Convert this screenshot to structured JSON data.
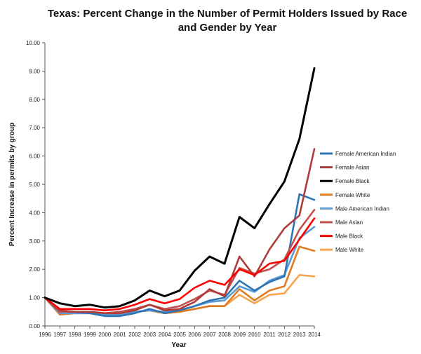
{
  "chart_data": {
    "type": "line",
    "title_line1": "Texas: Percent Change in the Number of Permit Holders Issued by Race",
    "title_line2": "and Gender by Year",
    "xlabel": "Year",
    "ylabel": "Percent Increase in permits by group",
    "ylim": [
      0,
      10
    ],
    "yticks": [
      "0.00",
      "1.00",
      "2.00",
      "3.00",
      "4.00",
      "5.00",
      "6.00",
      "7.00",
      "8.00",
      "9.00",
      "10.00"
    ],
    "grid": false,
    "legend_position": "right",
    "categories": [
      "1996",
      "1997",
      "1998",
      "1999",
      "2000",
      "2001",
      "2002",
      "2003",
      "2004",
      "2005",
      "2006",
      "2007",
      "2008",
      "2009",
      "2010",
      "2011",
      "2012",
      "2013",
      "2014"
    ],
    "series": [
      {
        "name": "Female American Indian",
        "color": "#2e75b6",
        "values": [
          1.0,
          0.5,
          0.5,
          0.45,
          0.35,
          0.35,
          0.45,
          0.6,
          0.45,
          0.55,
          0.7,
          0.9,
          1.0,
          1.6,
          1.25,
          1.55,
          1.75,
          4.65,
          4.45
        ]
      },
      {
        "name": "Female Asian",
        "color": "#b03b3b",
        "values": [
          1.0,
          0.55,
          0.5,
          0.5,
          0.45,
          0.45,
          0.55,
          0.75,
          0.55,
          0.6,
          0.85,
          1.3,
          1.05,
          2.45,
          1.75,
          2.7,
          3.45,
          3.9,
          6.25
        ]
      },
      {
        "name": "Female Black",
        "color": "#000000",
        "values": [
          1.0,
          0.8,
          0.7,
          0.75,
          0.65,
          0.7,
          0.9,
          1.25,
          1.05,
          1.25,
          1.95,
          2.45,
          2.2,
          3.85,
          3.45,
          4.3,
          5.1,
          6.6,
          9.1
        ]
      },
      {
        "name": "Female White",
        "color": "#e07b22",
        "values": [
          1.0,
          0.4,
          0.45,
          0.45,
          0.4,
          0.45,
          0.5,
          0.55,
          0.45,
          0.5,
          0.6,
          0.7,
          0.7,
          1.3,
          0.9,
          1.25,
          1.4,
          2.8,
          2.65
        ]
      },
      {
        "name": "Male American Indian",
        "color": "#5b9bd5",
        "values": [
          1.0,
          0.45,
          0.45,
          0.45,
          0.4,
          0.4,
          0.5,
          0.55,
          0.5,
          0.55,
          0.7,
          0.85,
          0.9,
          1.4,
          1.2,
          1.6,
          1.8,
          3.1,
          3.5
        ]
      },
      {
        "name": "Male Asian",
        "color": "#c0504d",
        "values": [
          1.0,
          0.5,
          0.5,
          0.5,
          0.45,
          0.5,
          0.6,
          0.75,
          0.6,
          0.7,
          0.95,
          1.25,
          1.1,
          2.05,
          1.85,
          2.0,
          2.35,
          3.4,
          4.1
        ]
      },
      {
        "name": "Male Black",
        "color": "#ff0000",
        "values": [
          1.0,
          0.6,
          0.6,
          0.6,
          0.55,
          0.6,
          0.75,
          0.95,
          0.8,
          0.95,
          1.35,
          1.6,
          1.45,
          2.0,
          1.8,
          2.2,
          2.3,
          3.05,
          3.8
        ]
      },
      {
        "name": "Male White",
        "color": "#f6a54e",
        "values": [
          1.0,
          0.45,
          0.45,
          0.45,
          0.4,
          0.45,
          0.5,
          0.55,
          0.45,
          0.5,
          0.6,
          0.7,
          0.7,
          1.1,
          0.8,
          1.1,
          1.15,
          1.8,
          1.75
        ]
      }
    ]
  }
}
